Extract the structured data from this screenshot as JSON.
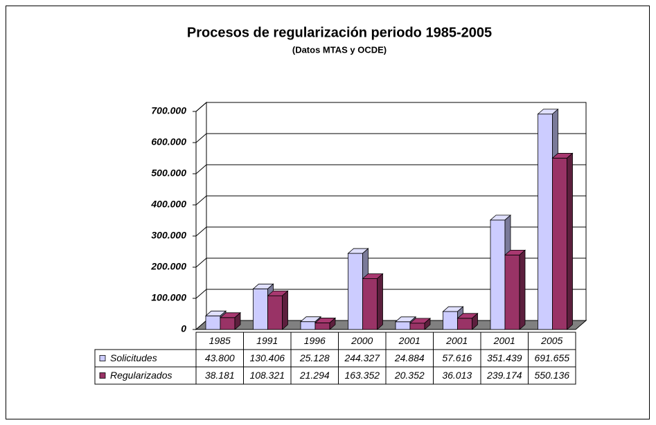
{
  "chart_data": {
    "type": "bar3d",
    "title": "Procesos de regularización periodo 1985-2005",
    "subtitle": "(Datos MTAS y OCDE)",
    "categories": [
      "1985",
      "1991",
      "1996",
      "2000",
      "2001",
      "2001",
      "2001",
      "2005"
    ],
    "series": [
      {
        "name": "Solicitudes",
        "color": "#ccccff",
        "values": [
          43800,
          130406,
          25128,
          244327,
          24884,
          57616,
          351439,
          691655
        ],
        "value_labels": [
          "43.800",
          "130.406",
          "25.128",
          "244.327",
          "24.884",
          "57.616",
          "351.439",
          "691.655"
        ]
      },
      {
        "name": "Regularizados",
        "color": "#993366",
        "values": [
          38181,
          108321,
          21294,
          163352,
          20352,
          36013,
          239174,
          550136
        ],
        "value_labels": [
          "38.181",
          "108.321",
          "21.294",
          "163.352",
          "20.352",
          "36.013",
          "239.174",
          "550.136"
        ]
      }
    ],
    "ylim": [
      0,
      700000
    ],
    "yticks": [
      0,
      {
        "value": 100000,
        "label": "100.000"
      },
      {
        "value": 200000,
        "label": "200.000"
      },
      {
        "value": 300000,
        "label": "300.000"
      },
      {
        "value": 400000,
        "label": "400.000"
      },
      {
        "value": 500000,
        "label": "500.000"
      },
      {
        "value": 600000,
        "label": "600.000"
      },
      {
        "value": 700000,
        "label": "700.000"
      }
    ],
    "grid": true,
    "data_table": true
  }
}
